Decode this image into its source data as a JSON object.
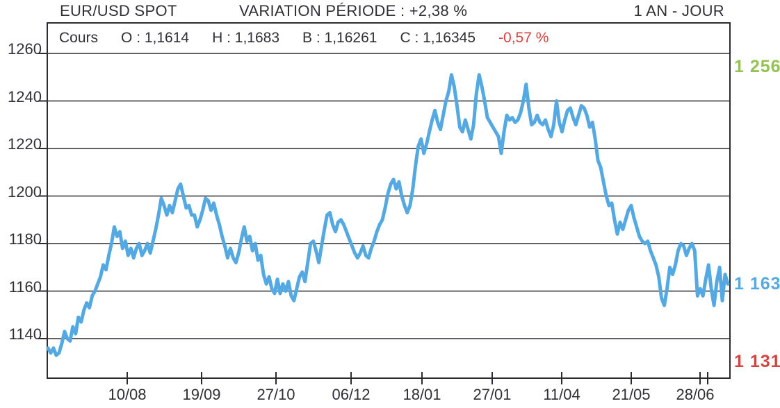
{
  "header": {
    "instrument": "EUR/USD SPOT",
    "variation": "VARIATION PÉRIODE : +2,38 %",
    "period": "1 AN - JOUR"
  },
  "quote_bar": {
    "label": "Cours",
    "open": "O : 1,1614",
    "high": "H : 1,1683",
    "low": "B : 1,16261",
    "close": "C : 1,16345",
    "change": "-0,57 %"
  },
  "side_labels": {
    "period_high": "1 256",
    "last": "1 163",
    "period_low": "1 131"
  },
  "colors": {
    "line": "#54a9e3",
    "high_label": "#92c353",
    "last_label": "#54a9e3",
    "low_label": "#d5433f",
    "negative_change": "#d5433f",
    "axis_text": "#2f2f36",
    "grid": "#2b2b33"
  },
  "chart_data": {
    "type": "line",
    "title": "EUR/USD SPOT",
    "subtitle": "1 AN - JOUR",
    "variation_period_pct": "+2,38 %",
    "day_change_pct": "-0,57 %",
    "ohlc": {
      "open": "1,1614",
      "high": "1,1683",
      "low": "1,16261",
      "close": "1,16345"
    },
    "ylim": [
      1121,
      1273
    ],
    "y_ticks": [
      1260,
      1240,
      1220,
      1200,
      1180,
      1160,
      1140
    ],
    "x_ticks": [
      "10/08",
      "19/09",
      "27/10",
      "06/12",
      "18/01",
      "27/01",
      "11/04",
      "21/05",
      "28/06"
    ],
    "period_high": 1256,
    "last_value": 1163,
    "period_low": 1131,
    "grid": "horizontal-only",
    "legend_position": "none",
    "values": [
      1136,
      1134,
      1136,
      1133,
      1134,
      1138,
      1143,
      1140,
      1139,
      1145,
      1142,
      1149,
      1147,
      1152,
      1155,
      1153,
      1158,
      1160,
      1163,
      1166,
      1171,
      1169,
      1175,
      1180,
      1187,
      1183,
      1185,
      1178,
      1181,
      1175,
      1178,
      1174,
      1178,
      1180,
      1175,
      1177,
      1180,
      1176,
      1181,
      1186,
      1192,
      1199,
      1196,
      1192,
      1196,
      1193,
      1198,
      1203,
      1205,
      1200,
      1195,
      1196,
      1192,
      1192,
      1187,
      1190,
      1194,
      1199,
      1198,
      1194,
      1197,
      1192,
      1188,
      1183,
      1179,
      1174,
      1178,
      1174,
      1172,
      1176,
      1182,
      1187,
      1181,
      1183,
      1177,
      1180,
      1173,
      1175,
      1167,
      1163,
      1166,
      1161,
      1159,
      1165,
      1159,
      1163,
      1160,
      1164,
      1158,
      1156,
      1161,
      1166,
      1168,
      1164,
      1172,
      1180,
      1181,
      1177,
      1172,
      1179,
      1186,
      1192,
      1193,
      1188,
      1185,
      1189,
      1190,
      1188,
      1185,
      1182,
      1179,
      1176,
      1174,
      1176,
      1179,
      1175,
      1174,
      1178,
      1181,
      1185,
      1188,
      1190,
      1195,
      1201,
      1205,
      1207,
      1203,
      1206,
      1200,
      1196,
      1193,
      1196,
      1203,
      1213,
      1221,
      1224,
      1218,
      1222,
      1227,
      1232,
      1236,
      1231,
      1228,
      1234,
      1240,
      1244,
      1251,
      1246,
      1238,
      1229,
      1227,
      1232,
      1228,
      1224,
      1230,
      1243,
      1251,
      1246,
      1240,
      1233,
      1231,
      1229,
      1227,
      1225,
      1218,
      1227,
      1234,
      1232,
      1233,
      1231,
      1232,
      1235,
      1240,
      1247,
      1237,
      1230,
      1231,
      1234,
      1231,
      1230,
      1232,
      1228,
      1225,
      1230,
      1240,
      1231,
      1227,
      1232,
      1236,
      1237,
      1233,
      1230,
      1234,
      1238,
      1237,
      1234,
      1229,
      1231,
      1224,
      1215,
      1212,
      1206,
      1200,
      1196,
      1197,
      1190,
      1184,
      1189,
      1186,
      1190,
      1194,
      1196,
      1191,
      1187,
      1183,
      1181,
      1180,
      1181,
      1177,
      1174,
      1171,
      1166,
      1157,
      1154,
      1161,
      1170,
      1167,
      1171,
      1177,
      1180,
      1179,
      1175,
      1178,
      1180,
      1177,
      1158,
      1161,
      1158,
      1165,
      1171,
      1161,
      1154,
      1164,
      1170,
      1156,
      1167,
      1163
    ]
  }
}
